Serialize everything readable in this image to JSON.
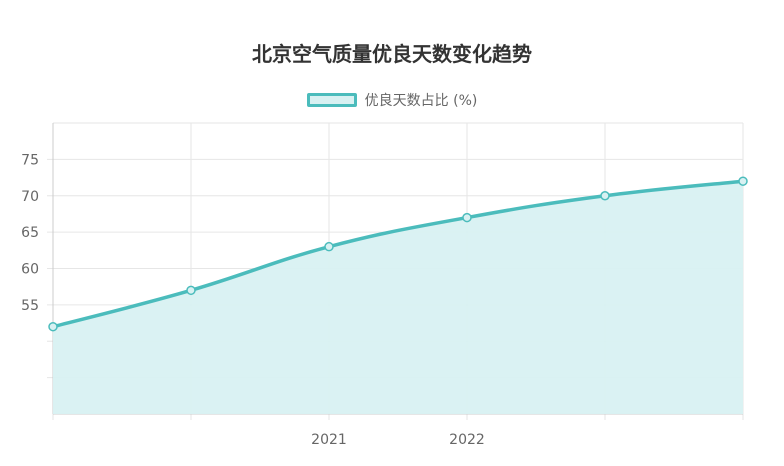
{
  "chart_data": {
    "type": "area",
    "title": "北京空气质量优良天数变化趋势",
    "legend_position": "top",
    "x": [
      "",
      "",
      "2021",
      "2022",
      "",
      ""
    ],
    "series": [
      {
        "name": "优良天数占比 (%)",
        "values": [
          52,
          57,
          63,
          67,
          70,
          72
        ]
      }
    ],
    "xlabel": "",
    "ylabel": "",
    "ylim": [
      40,
      80
    ],
    "yticks": [
      45,
      50,
      55,
      60,
      65,
      70,
      75
    ],
    "yticks_labeled": [
      55,
      60,
      65,
      70,
      75
    ],
    "grid": true,
    "colors": {
      "line": "#4bbcbc",
      "fill": "#d8f1f2",
      "grid": "#e6e6e6",
      "axis": "#cccccc"
    }
  }
}
